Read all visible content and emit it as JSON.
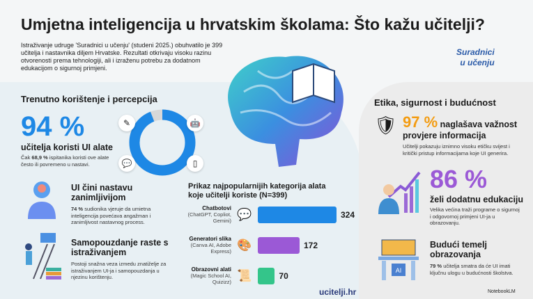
{
  "title": "Umjetna inteligencija u hrvatskim školama: Što kažu učitelji?",
  "intro": "Istraživanje udruge 'Suradnici u učenju' (studeni 2025.) obuhvatilo je 399 učitelja i nastavnika diljem Hrvatske. Rezultati otkrivaju visoku razinu otvorenosti prema tehnologiji, ali i izraženu potrebu za dodatnom edukacijom o sigurnoj primjeni.",
  "logo": {
    "line1": "Suradnici",
    "line2": "u učenju"
  },
  "left": {
    "heading": "Trenutno korištenje i percepcija",
    "stat": "94 %",
    "stat_label": "učitelja koristi UI alate",
    "note_pre": "Čak ",
    "note_bold": "68,9 %",
    "note_post": " ispitanika koristi ove alate često ili povremeno u nastavi.",
    "donut": {
      "value_percent": 94,
      "color": "#1e88e5",
      "light": "#4fc3f7",
      "rest": "#d8d8d8"
    },
    "icons": [
      "pencil-icon",
      "robot-icon",
      "chat-icon",
      "tablet-icon"
    ],
    "block1": {
      "title": "UI čini nastavu zanimljivijom",
      "bold": "74 %",
      "text": " sudionika vjeruje da umietna inteligencija povećava angažman i zanimljivost nastavnog process."
    },
    "block2": {
      "title": "Samopouzdanje raste s istraživanjem",
      "text": "Postoji snažna veza izmedu znatiželje za istraživanjem UI-ja i samopouzdanja u njezinu korištenju."
    }
  },
  "chart_data": {
    "type": "bar",
    "orientation": "horizontal",
    "title": "Prikaz najpopularnijih kategorija alata koje učitelji koriste (N=399)",
    "categories": [
      {
        "name": "Chatbotovi",
        "detail": "(ChatGPT, Copliot, Gemini)"
      },
      {
        "name": "Generatori slika",
        "detail": "(Canva AI, Adobe Express)"
      },
      {
        "name": "Obrazovni alati",
        "detail": "(Magic School AI, Quizizz)"
      }
    ],
    "values": [
      324,
      172,
      70
    ],
    "colors": [
      "#1e88e5",
      "#9b59d6",
      "#34c58a"
    ]
  },
  "footer_link": "ucitelji.hr",
  "right": {
    "heading": "Etika, sigurnost i budućnost",
    "s1": {
      "stat": "97 %",
      "label1": " naglašava važnost",
      "label2": "provjere informacija",
      "text": "Učitelji pokazuju iznimno visoku etičku svijest i kritički pristup informacijama koje UI generira."
    },
    "s2": {
      "stat": "86 %",
      "label": "želi dodatnu edukaciju",
      "text": "Velika većina traži programe o sigurnoj i odgovornoj primjeni UI-ja u obrazovanju."
    },
    "s3": {
      "title": "Budući temelj obrazovanja",
      "bold": "79 %",
      "text": " učitelja smatra da će UI imati ključnu ulogu u budućnosti školstva."
    }
  },
  "badge": "NotebookLM",
  "colors": {
    "blue": "#1e88e5",
    "orange": "#f39c12",
    "purple": "#9b59d6"
  }
}
